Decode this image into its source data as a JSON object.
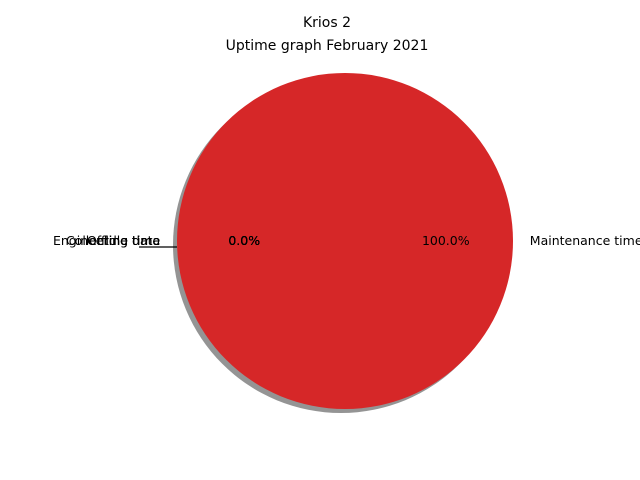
{
  "chart_data": {
    "type": "pie",
    "title": "Krios 2",
    "subtitle": "Uptime graph February 2021",
    "slices": [
      {
        "label": "Collecting data",
        "value": 0.0,
        "pct_label": "0.0%",
        "color": "#1f77b4"
      },
      {
        "label": "Idle time",
        "value": 0.0,
        "pct_label": "0.0%",
        "color": "#ff7f0e"
      },
      {
        "label": "Engineering time",
        "value": 0.0,
        "pct_label": "0.0%",
        "color": "#2ca02c"
      },
      {
        "label": "Offline time",
        "value": 0.0,
        "pct_label": "0.0%",
        "color": "#9467bd"
      },
      {
        "label": "Maintenance time",
        "value": 100.0,
        "pct_label": "100.0%",
        "color": "#d62728"
      }
    ],
    "shadow": true,
    "legend": "none"
  }
}
